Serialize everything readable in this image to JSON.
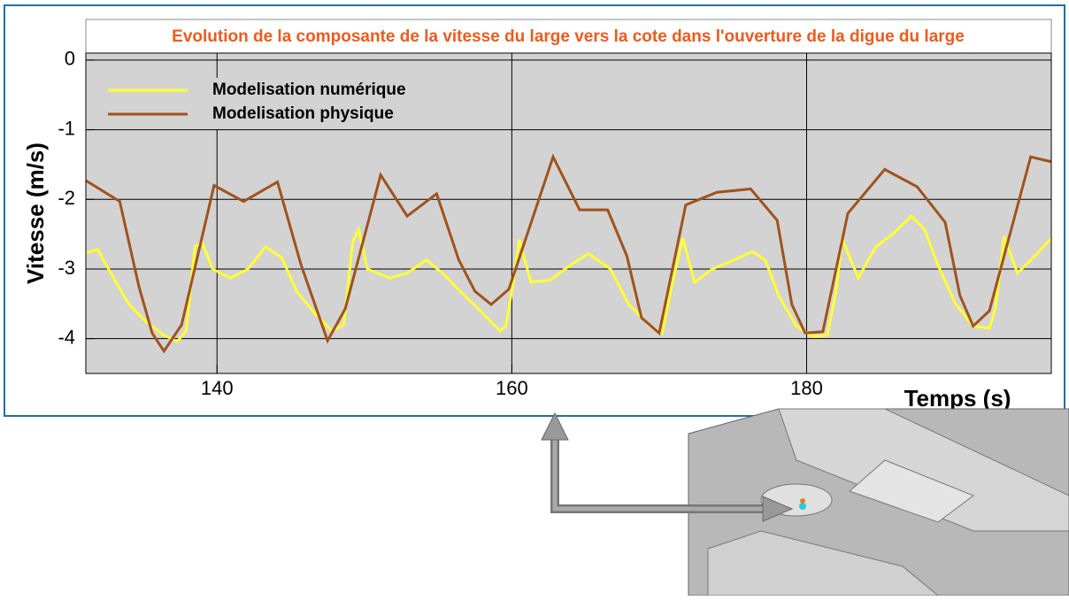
{
  "chart_data": {
    "type": "line",
    "title": "Evolution de la composante de la vitesse du large vers la cote dans l'ouverture de la digue du large",
    "xlabel": "Temps (s)",
    "ylabel": "Vitesse (m/s)",
    "xlim": [
      131.1,
      196.6
    ],
    "xticks": [
      140,
      160,
      180
    ],
    "ylim": [
      -4.5,
      0.1
    ],
    "yticks": [
      0,
      -1,
      -2,
      -3,
      -4
    ],
    "grid": true,
    "legend": "upper left",
    "series": [
      {
        "name": "Modelisation numérique",
        "color": "#ffff33",
        "x": [
          131.1,
          131.9,
          132.8,
          134.0,
          135.2,
          136.4,
          137.3,
          137.9,
          138.5,
          139.0,
          139.7,
          140.9,
          142.1,
          143.3,
          144.4,
          145.4,
          146.6,
          147.8,
          148.6,
          149.2,
          149.6,
          150.2,
          151.7,
          152.9,
          154.2,
          155.3,
          156.5,
          158.0,
          159.2,
          159.6,
          160.1,
          160.5,
          161.3,
          162.6,
          164.0,
          165.2,
          166.7,
          167.9,
          169.4,
          170.2,
          170.9,
          171.6,
          172.4,
          173.6,
          175.1,
          176.3,
          177.2,
          178.1,
          179.3,
          180.4,
          181.4,
          182.0,
          182.4,
          183.5,
          184.7,
          185.9,
          187.1,
          188.0,
          188.9,
          190.1,
          191.3,
          192.4,
          192.8,
          193.4,
          194.3,
          195.5,
          196.6
        ],
        "values": [
          -2.77,
          -2.72,
          -3.06,
          -3.5,
          -3.76,
          -3.95,
          -4.04,
          -3.89,
          -2.68,
          -2.62,
          -3.0,
          -3.13,
          -3.0,
          -2.68,
          -2.84,
          -3.32,
          -3.63,
          -3.89,
          -3.8,
          -2.62,
          -2.43,
          -3.0,
          -3.13,
          -3.06,
          -2.87,
          -3.06,
          -3.32,
          -3.63,
          -3.89,
          -3.82,
          -3.19,
          -2.58,
          -3.19,
          -3.16,
          -2.94,
          -2.78,
          -3.0,
          -3.5,
          -3.82,
          -3.92,
          -3.19,
          -2.56,
          -3.19,
          -3.0,
          -2.87,
          -2.75,
          -2.87,
          -3.38,
          -3.82,
          -3.97,
          -3.95,
          -3.32,
          -2.56,
          -3.13,
          -2.68,
          -2.49,
          -2.24,
          -2.43,
          -2.94,
          -3.5,
          -3.82,
          -3.85,
          -3.57,
          -2.53,
          -3.06,
          -2.81,
          -2.56
        ]
      },
      {
        "name": "Modelisation physique",
        "color": "#a0521d",
        "x": [
          131.1,
          133.4,
          134.7,
          135.6,
          136.4,
          137.6,
          139.8,
          141.8,
          144.1,
          145.7,
          147.5,
          148.7,
          151.1,
          152.9,
          154.9,
          156.4,
          157.5,
          158.6,
          159.8,
          162.8,
          164.6,
          166.5,
          167.8,
          168.8,
          170.0,
          171.8,
          173.9,
          176.2,
          178.0,
          179.0,
          179.9,
          181.1,
          182.8,
          185.3,
          187.5,
          189.4,
          190.4,
          191.3,
          192.4,
          195.2,
          196.6
        ],
        "values": [
          -1.73,
          -2.03,
          -3.25,
          -3.92,
          -4.18,
          -3.8,
          -1.8,
          -2.03,
          -1.75,
          -2.94,
          -4.03,
          -3.57,
          -1.65,
          -2.24,
          -1.92,
          -2.87,
          -3.32,
          -3.51,
          -3.29,
          -1.39,
          -2.15,
          -2.15,
          -2.81,
          -3.7,
          -3.92,
          -2.08,
          -1.9,
          -1.85,
          -2.3,
          -3.51,
          -3.92,
          -3.9,
          -2.2,
          -1.57,
          -1.82,
          -2.33,
          -3.38,
          -3.82,
          -3.6,
          -1.39,
          -1.46
        ]
      }
    ]
  }
}
